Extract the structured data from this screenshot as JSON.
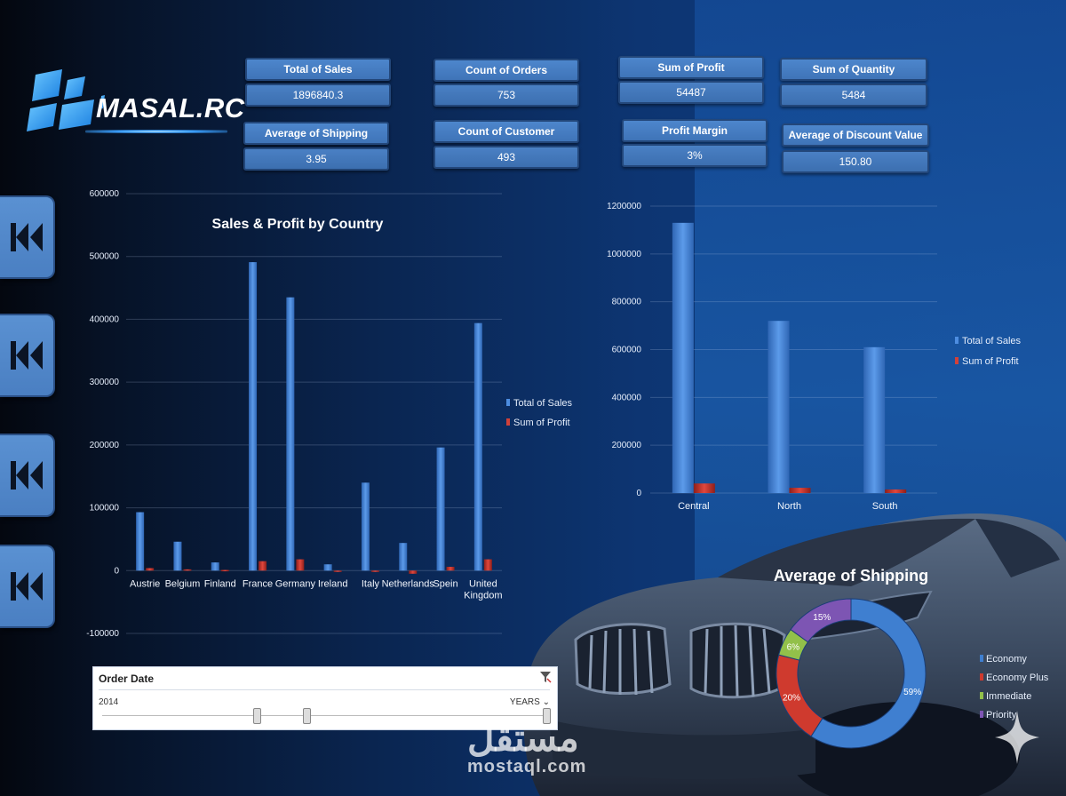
{
  "brand": {
    "name": "MASAL.RC"
  },
  "kpis": [
    {
      "id": "total-sales",
      "title": "Total of Sales",
      "value": "1896840.3"
    },
    {
      "id": "count-orders",
      "title": "Count of Orders",
      "value": "753"
    },
    {
      "id": "sum-profit",
      "title": "Sum of Profit",
      "value": "54487"
    },
    {
      "id": "sum-quantity",
      "title": "Sum of Quantity",
      "value": "5484"
    },
    {
      "id": "avg-shipping",
      "title": "Average of Shipping",
      "value": "3.95"
    },
    {
      "id": "count-customer",
      "title": "Count of Customer",
      "value": "493"
    },
    {
      "id": "profit-margin",
      "title": "Profit Margin",
      "value": "3%"
    },
    {
      "id": "avg-discount",
      "title": "Average of Discount Value",
      "value": "150.80"
    }
  ],
  "slicer": {
    "title": "Order Date",
    "year": "2014",
    "unit": "YEARS",
    "unit_arrow": "⌄"
  },
  "watermark": {
    "arabic": "مستقل",
    "latin": "mostaql.com"
  },
  "colors": {
    "sales": "#3f7fd0",
    "profit": "#c0312b",
    "economy": "#3f7fd0",
    "economy_plus": "#cf3a2e",
    "immediate": "#92c04a",
    "priority": "#7d55b3"
  },
  "chart_data": [
    {
      "type": "bar",
      "title": "Sales & Profit by Country",
      "categories": [
        "Austrie",
        "Belgium",
        "Finland",
        "France",
        "Germany",
        "Ireland",
        "Italy",
        "Netherlands",
        "Spein",
        "United Kingdom"
      ],
      "series": [
        {
          "name": "Total of Sales",
          "values": [
            93000,
            46000,
            13000,
            491000,
            435000,
            10000,
            140000,
            44000,
            196000,
            394000
          ]
        },
        {
          "name": "Sum of Profit",
          "values": [
            4000,
            2000,
            1000,
            15000,
            18000,
            -1000,
            0,
            -5000,
            6000,
            18000
          ]
        }
      ],
      "y_ticks": [
        "600000",
        "500000",
        "400000",
        "300000",
        "200000",
        "100000",
        "0",
        "-100000"
      ],
      "ylim": [
        -100000,
        600000
      ],
      "legend": "right"
    },
    {
      "type": "bar",
      "categories": [
        "Central",
        "North",
        "South"
      ],
      "series": [
        {
          "name": "Total of Sales",
          "values": [
            1130000,
            720000,
            610000
          ]
        },
        {
          "name": "Sum of Profit",
          "values": [
            40000,
            22000,
            15000
          ]
        }
      ],
      "y_ticks": [
        "1200000",
        "1000000",
        "800000",
        "600000",
        "400000",
        "200000",
        "0"
      ],
      "ylim": [
        0,
        1200000
      ],
      "legend": "right"
    },
    {
      "type": "pie",
      "title": "Average of Shipping",
      "labels": [
        "Economy",
        "Economy Plus",
        "Immediate",
        "Priority"
      ],
      "values": [
        59,
        20,
        6,
        15
      ],
      "value_labels": [
        "59%",
        "20%",
        "6%",
        "15%"
      ],
      "legend": "right"
    }
  ]
}
